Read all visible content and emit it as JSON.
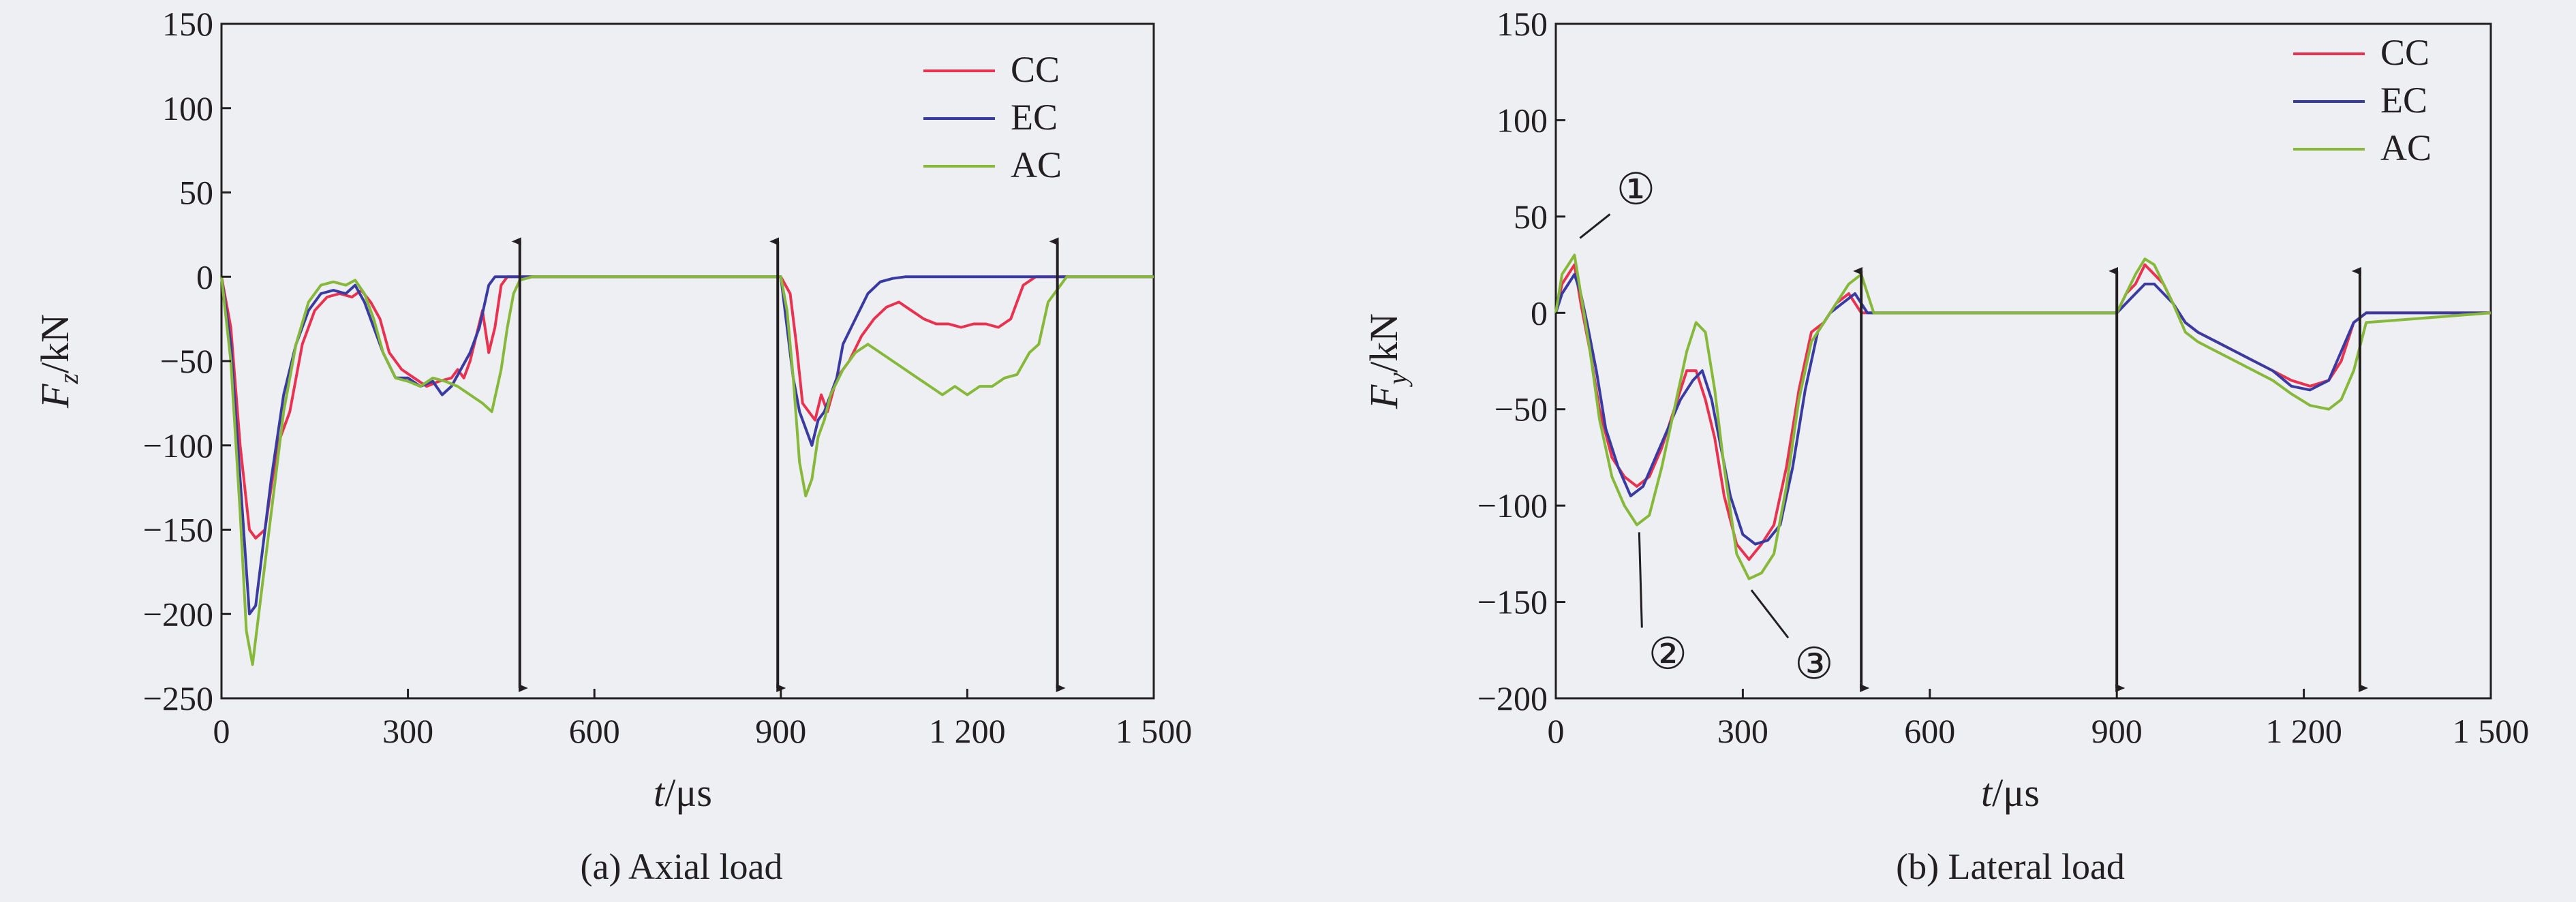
{
  "chart_data": [
    {
      "type": "line",
      "caption": "(a) Axial load",
      "ylabel_main": "F",
      "ylabel_sub": "z",
      "ylabel_unit": "/kN",
      "xlabel_main": "t",
      "xlabel_unit": "/μs",
      "xlim": [
        0,
        1500
      ],
      "ylim": [
        -250,
        150
      ],
      "xticks": [
        0,
        300,
        600,
        900,
        1200,
        1500
      ],
      "xtick_labels": [
        "0",
        "300",
        "600",
        "900",
        "1 200",
        "1 500"
      ],
      "yticks": [
        150,
        100,
        50,
        0,
        -50,
        -100,
        -150,
        -200,
        -250
      ],
      "ytick_labels": [
        "150",
        "100",
        "50",
        "0",
        "−50",
        "−100",
        "−150",
        "−200",
        "−250"
      ],
      "markers_x": [
        480,
        895,
        1345
      ],
      "legend": [
        "CC",
        "EC",
        "AC"
      ],
      "series": [
        {
          "name": "CC",
          "color": "#e8324f",
          "x": [
            0,
            15,
            30,
            45,
            55,
            70,
            90,
            110,
            130,
            150,
            170,
            190,
            210,
            225,
            240,
            255,
            270,
            290,
            310,
            330,
            350,
            370,
            380,
            390,
            400,
            410,
            420,
            430,
            440,
            450,
            460,
            470,
            480,
            500,
            600,
            700,
            800,
            900,
            915,
            925,
            935,
            945,
            955,
            965,
            975,
            990,
            1010,
            1030,
            1050,
            1070,
            1090,
            1110,
            1130,
            1150,
            1170,
            1190,
            1210,
            1230,
            1250,
            1270,
            1290,
            1310,
            1330,
            1360,
            1500
          ],
          "y": [
            0,
            -30,
            -100,
            -150,
            -155,
            -150,
            -100,
            -80,
            -40,
            -20,
            -12,
            -10,
            -12,
            -8,
            -15,
            -25,
            -45,
            -55,
            -60,
            -65,
            -62,
            -60,
            -55,
            -60,
            -50,
            -35,
            -20,
            -45,
            -30,
            -5,
            0,
            0,
            0,
            0,
            0,
            0,
            0,
            0,
            -10,
            -40,
            -75,
            -80,
            -85,
            -70,
            -80,
            -60,
            -50,
            -35,
            -25,
            -18,
            -15,
            -20,
            -25,
            -28,
            -28,
            -30,
            -28,
            -28,
            -30,
            -25,
            -5,
            0,
            0,
            0,
            0
          ]
        },
        {
          "name": "EC",
          "color": "#3a3ba2",
          "x": [
            0,
            15,
            30,
            45,
            55,
            65,
            80,
            100,
            120,
            140,
            160,
            180,
            200,
            215,
            230,
            245,
            260,
            280,
            300,
            320,
            340,
            355,
            370,
            385,
            400,
            415,
            430,
            440,
            450,
            460,
            470,
            480,
            500,
            600,
            700,
            800,
            900,
            910,
            920,
            930,
            940,
            950,
            960,
            970,
            980,
            990,
            1000,
            1020,
            1040,
            1060,
            1080,
            1100,
            1150,
            1200,
            1250,
            1300,
            1500
          ],
          "y": [
            0,
            -40,
            -120,
            -200,
            -195,
            -165,
            -120,
            -70,
            -40,
            -20,
            -10,
            -8,
            -10,
            -5,
            -15,
            -30,
            -45,
            -60,
            -60,
            -65,
            -62,
            -70,
            -65,
            -55,
            -45,
            -30,
            -5,
            0,
            0,
            0,
            0,
            0,
            0,
            0,
            0,
            0,
            0,
            -30,
            -60,
            -80,
            -90,
            -100,
            -85,
            -80,
            -70,
            -60,
            -40,
            -25,
            -10,
            -3,
            -1,
            0,
            0,
            0,
            0,
            0,
            0
          ]
        },
        {
          "name": "AC",
          "color": "#86b83a",
          "x": [
            0,
            15,
            30,
            40,
            50,
            60,
            80,
            100,
            120,
            140,
            160,
            180,
            200,
            215,
            230,
            245,
            260,
            280,
            300,
            320,
            340,
            360,
            380,
            400,
            420,
            435,
            450,
            460,
            470,
            480,
            500,
            600,
            700,
            800,
            900,
            910,
            920,
            930,
            940,
            950,
            960,
            970,
            980,
            1000,
            1020,
            1040,
            1060,
            1080,
            1100,
            1120,
            1140,
            1160,
            1180,
            1200,
            1220,
            1240,
            1260,
            1280,
            1300,
            1315,
            1330,
            1360,
            1500
          ],
          "y": [
            0,
            -50,
            -140,
            -210,
            -230,
            -200,
            -140,
            -80,
            -40,
            -15,
            -5,
            -3,
            -5,
            -2,
            -10,
            -25,
            -45,
            -60,
            -62,
            -65,
            -60,
            -62,
            -65,
            -70,
            -75,
            -80,
            -55,
            -30,
            -10,
            -2,
            0,
            0,
            0,
            0,
            0,
            -20,
            -60,
            -110,
            -130,
            -120,
            -95,
            -85,
            -70,
            -55,
            -45,
            -40,
            -45,
            -50,
            -55,
            -60,
            -65,
            -70,
            -65,
            -70,
            -65,
            -65,
            -60,
            -58,
            -45,
            -40,
            -15,
            0,
            0
          ]
        }
      ]
    },
    {
      "type": "line",
      "caption": "(b) Lateral load",
      "ylabel_main": "F",
      "ylabel_sub": "y",
      "ylabel_unit": "/kN",
      "xlabel_main": "t",
      "xlabel_unit": "/μs",
      "xlim": [
        0,
        1500
      ],
      "ylim": [
        -200,
        150
      ],
      "xticks": [
        0,
        300,
        600,
        900,
        1200,
        1500
      ],
      "xtick_labels": [
        "0",
        "300",
        "600",
        "900",
        "1 200",
        "1 500"
      ],
      "yticks": [
        150,
        100,
        50,
        0,
        -50,
        -100,
        -150,
        -200
      ],
      "ytick_labels": [
        "150",
        "100",
        "50",
        "0",
        "−50",
        "−100",
        "−150",
        "−200"
      ],
      "markers_x": [
        490,
        900,
        1290
      ],
      "legend": [
        "CC",
        "EC",
        "AC"
      ],
      "annotations": [
        {
          "label": "①",
          "x": 30,
          "y": 30
        },
        {
          "label": "②",
          "x": 125,
          "y": -105
        },
        {
          "label": "③",
          "x": 305,
          "y": -135
        }
      ],
      "series": [
        {
          "name": "CC",
          "color": "#e8324f",
          "x": [
            0,
            10,
            20,
            30,
            40,
            55,
            70,
            90,
            110,
            130,
            150,
            170,
            190,
            210,
            225,
            240,
            255,
            270,
            290,
            310,
            330,
            350,
            370,
            390,
            410,
            430,
            450,
            470,
            490,
            510,
            600,
            700,
            800,
            900,
            915,
            930,
            945,
            960,
            975,
            990,
            1010,
            1030,
            1060,
            1090,
            1120,
            1150,
            1180,
            1210,
            1240,
            1260,
            1280,
            1300,
            1500
          ],
          "y": [
            0,
            15,
            20,
            25,
            5,
            -20,
            -50,
            -75,
            -85,
            -90,
            -85,
            -70,
            -50,
            -30,
            -30,
            -45,
            -65,
            -95,
            -120,
            -128,
            -120,
            -110,
            -80,
            -40,
            -10,
            -5,
            5,
            10,
            0,
            0,
            0,
            0,
            0,
            0,
            10,
            15,
            25,
            20,
            15,
            5,
            -5,
            -10,
            -15,
            -20,
            -25,
            -30,
            -35,
            -38,
            -35,
            -25,
            -5,
            0,
            0
          ]
        },
        {
          "name": "EC",
          "color": "#3a3ba2",
          "x": [
            0,
            10,
            20,
            30,
            40,
            50,
            65,
            80,
            100,
            120,
            140,
            160,
            180,
            200,
            220,
            235,
            250,
            265,
            280,
            300,
            320,
            340,
            360,
            380,
            400,
            420,
            440,
            460,
            480,
            500,
            600,
            700,
            800,
            900,
            915,
            930,
            945,
            960,
            975,
            990,
            1010,
            1030,
            1060,
            1090,
            1120,
            1150,
            1180,
            1210,
            1240,
            1260,
            1280,
            1300,
            1500
          ],
          "y": [
            0,
            10,
            15,
            20,
            10,
            -5,
            -30,
            -60,
            -80,
            -95,
            -90,
            -75,
            -60,
            -45,
            -35,
            -30,
            -45,
            -70,
            -95,
            -115,
            -120,
            -118,
            -110,
            -80,
            -40,
            -10,
            0,
            5,
            10,
            0,
            0,
            0,
            0,
            0,
            5,
            10,
            15,
            15,
            10,
            5,
            -5,
            -10,
            -15,
            -20,
            -25,
            -30,
            -38,
            -40,
            -35,
            -20,
            -5,
            0,
            0
          ]
        },
        {
          "name": "AC",
          "color": "#86b83a",
          "x": [
            0,
            10,
            20,
            30,
            40,
            55,
            70,
            90,
            110,
            130,
            150,
            170,
            190,
            210,
            225,
            240,
            255,
            270,
            290,
            310,
            330,
            350,
            370,
            390,
            410,
            430,
            450,
            470,
            490,
            510,
            600,
            700,
            800,
            900,
            915,
            930,
            945,
            960,
            975,
            990,
            1010,
            1030,
            1060,
            1090,
            1120,
            1150,
            1180,
            1210,
            1240,
            1260,
            1280,
            1300,
            1500
          ],
          "y": [
            0,
            20,
            25,
            30,
            10,
            -20,
            -55,
            -85,
            -100,
            -110,
            -105,
            -80,
            -50,
            -20,
            -5,
            -10,
            -40,
            -80,
            -125,
            -138,
            -135,
            -125,
            -90,
            -45,
            -15,
            -5,
            5,
            15,
            20,
            0,
            0,
            0,
            0,
            0,
            10,
            20,
            28,
            25,
            15,
            5,
            -10,
            -15,
            -20,
            -25,
            -30,
            -35,
            -42,
            -48,
            -50,
            -45,
            -30,
            -5,
            0
          ]
        }
      ]
    }
  ]
}
